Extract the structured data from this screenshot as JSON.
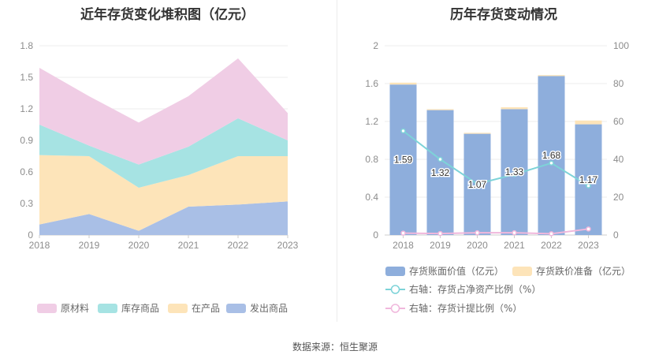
{
  "source_label": "数据来源：恒生聚源",
  "chart_data": [
    {
      "type": "area",
      "stacked": true,
      "title": "近年存货变化堆积图（亿元）",
      "x": [
        "2018",
        "2019",
        "2020",
        "2021",
        "2022",
        "2023"
      ],
      "ylim": [
        0,
        1.8
      ],
      "yticks": [
        "0",
        "0.3",
        "0.6",
        "0.9",
        "1.2",
        "1.5",
        "1.8"
      ],
      "grid": true,
      "legend_position": "bottom",
      "series": [
        {
          "name": "发出商品",
          "values": [
            0.1,
            0.2,
            0.04,
            0.27,
            0.29,
            0.32
          ],
          "color": "#a9bfe6"
        },
        {
          "name": "在产品",
          "values": [
            0.66,
            0.55,
            0.41,
            0.3,
            0.46,
            0.43
          ],
          "color": "#fde4b9"
        },
        {
          "name": "库存商品",
          "values": [
            0.29,
            0.1,
            0.22,
            0.27,
            0.36,
            0.15
          ],
          "color": "#a6e3e3"
        },
        {
          "name": "原材料",
          "values": [
            0.54,
            0.47,
            0.4,
            0.48,
            0.57,
            0.26
          ],
          "color": "#f0cde5"
        }
      ],
      "legend_order": [
        "原材料",
        "库存商品",
        "在产品",
        "发出商品"
      ]
    },
    {
      "type": "bar",
      "stacked": true,
      "title": "历年存货变动情况",
      "x": [
        "2018",
        "2019",
        "2020",
        "2021",
        "2022",
        "2023"
      ],
      "ylim": [
        0,
        2
      ],
      "yticks": [
        "0",
        "0.4",
        "0.8",
        "1.2",
        "1.6",
        "2"
      ],
      "y2lim": [
        0,
        100
      ],
      "y2ticks": [
        "0",
        "20",
        "40",
        "60",
        "80",
        "100"
      ],
      "grid": true,
      "legend_position": "bottom",
      "bars": [
        {
          "name": "存货账面价值（亿元）",
          "values": [
            1.59,
            1.32,
            1.07,
            1.33,
            1.68,
            1.17
          ],
          "labels": [
            "1.59",
            "1.32",
            "1.07",
            "1.33",
            "1.68",
            "1.17"
          ],
          "color": "#8eaedc"
        },
        {
          "name": "存货跌价准备（亿元）",
          "values": [
            0.02,
            0.01,
            0.01,
            0.02,
            0.01,
            0.04
          ],
          "color": "#fde4b9"
        }
      ],
      "lines": [
        {
          "name": "右轴：存货占净资产比例（%）",
          "axis": "right",
          "values": [
            55,
            40,
            27,
            32,
            38,
            26
          ],
          "color": "#7dd3d8"
        },
        {
          "name": "右轴：存货计提比例（%）",
          "axis": "right",
          "values": [
            1,
            0.8,
            1.2,
            1.2,
            0.7,
            3.2
          ],
          "color": "#f0b7dc"
        }
      ]
    }
  ]
}
